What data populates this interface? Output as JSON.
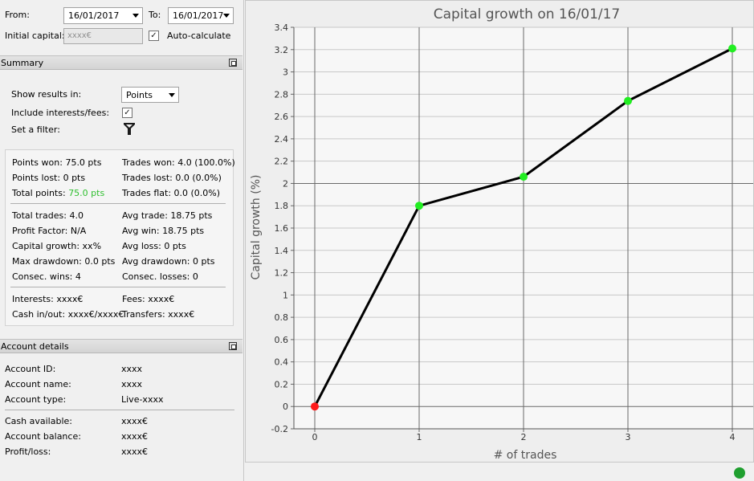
{
  "filters": {
    "from_label": "From:",
    "from_value": "16/01/2017",
    "to_label": "To:",
    "to_value": "16/01/2017",
    "initial_capital_label": "Initial capital:",
    "initial_capital_placeholder": "xxxx€",
    "auto_calculate_label": "Auto-calculate",
    "auto_calculate_checked": true
  },
  "summary": {
    "title": "Summary",
    "show_results_label": "Show results in:",
    "show_results_value": "Points",
    "include_interests_label": "Include interests/fees:",
    "include_interests_checked": true,
    "filter_label": "Set a filter:",
    "filter_icon": "funnel-icon",
    "stats": {
      "points_won": "Points won: 75.0 pts",
      "trades_won": "Trades won: 4.0 (100.0%)",
      "points_lost": "Points lost: 0 pts",
      "trades_lost": "Trades lost: 0.0 (0.0%)",
      "total_points_label": "Total points:",
      "total_points_value": "75.0 pts",
      "trades_flat": "Trades flat: 0.0 (0.0%)",
      "total_trades": "Total trades: 4.0",
      "avg_trade": "Avg trade: 18.75 pts",
      "profit_factor": "Profit Factor: N/A",
      "avg_win": "Avg win: 18.75 pts",
      "capital_growth": "Capital growth: xx%",
      "avg_loss": "Avg loss: 0 pts",
      "max_drawdown": "Max drawdown: 0.0 pts",
      "avg_drawdown": "Avg drawdown: 0 pts",
      "consec_wins": "Consec. wins: 4",
      "consec_losses": "Consec. losses: 0",
      "interests": "Interests: xxxx€",
      "fees": "Fees: xxxx€",
      "cash_in_out": "Cash in/out: xxxx€/xxxx€",
      "transfers": "Transfers: xxxx€"
    },
    "positive_color": "#2fbf2f"
  },
  "account": {
    "title": "Account details",
    "rows": [
      {
        "label": "Account ID:",
        "value": "xxxx"
      },
      {
        "label": "Account name:",
        "value": "xxxx"
      },
      {
        "label": "Account type:",
        "value": "Live-xxxx"
      },
      {
        "label": "Cash available:",
        "value": "xxxx€"
      },
      {
        "label": "Account balance:",
        "value": "xxxx€"
      },
      {
        "label": "Profit/loss:",
        "value": "xxxx€"
      }
    ]
  },
  "chart_data": {
    "type": "line",
    "title": "Capital growth on 16/01/17",
    "xlabel": "# of trades",
    "ylabel": "Capital growth (%)",
    "x": [
      0,
      1,
      2,
      3,
      4
    ],
    "y": [
      0,
      1.8,
      2.06,
      2.74,
      3.21
    ],
    "point_colors": [
      "#ff1a1a",
      "#22ee22",
      "#22ee22",
      "#22ee22",
      "#22ee22"
    ],
    "line_color": "#000000",
    "xlim": [
      -0.2,
      4.2
    ],
    "ylim": [
      -0.2,
      3.4
    ],
    "xticks": [
      "0",
      "1",
      "2",
      "3",
      "4"
    ],
    "yticks": [
      "-0.2",
      "0",
      "0.2",
      "0.4",
      "0.6",
      "0.8",
      "1",
      "1.2",
      "1.4",
      "1.6",
      "1.8",
      "2",
      "2.2",
      "2.4",
      "2.6",
      "2.8",
      "3",
      "3.2",
      "3.4"
    ],
    "grid": true,
    "legend": "none"
  },
  "status": {
    "connection_icon": "connection-status-icon",
    "connection_color": "#1f9f2f"
  }
}
